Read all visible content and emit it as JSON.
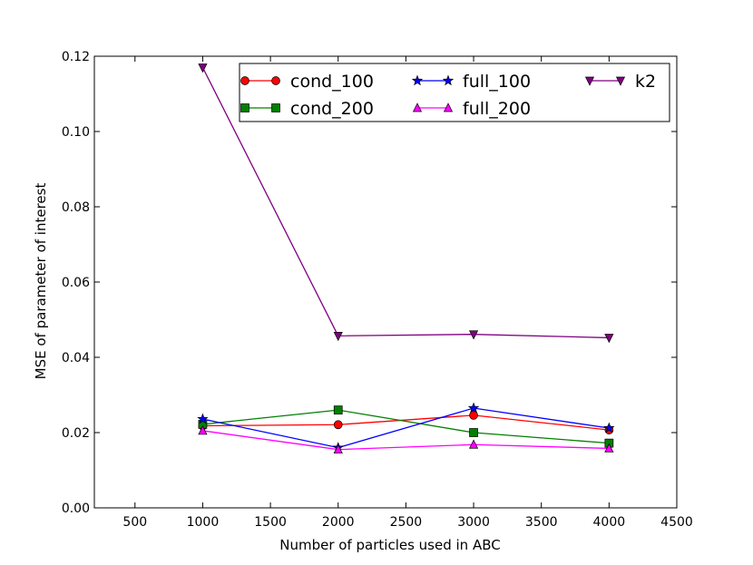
{
  "chart_data": {
    "type": "line",
    "title": "",
    "xlabel": "Number of particles used in ABC",
    "ylabel": "MSE of parameter of interest",
    "xlim": [
      200,
      4500
    ],
    "ylim": [
      0.0,
      0.12
    ],
    "xticks": [
      500,
      1000,
      1500,
      2000,
      2500,
      3000,
      3500,
      4000,
      4500
    ],
    "yticks": [
      0.0,
      0.02,
      0.04,
      0.06,
      0.08,
      0.1,
      0.12
    ],
    "xtick_labels": [
      "500",
      "1000",
      "1500",
      "2000",
      "2500",
      "3000",
      "3500",
      "4000",
      "4500"
    ],
    "ytick_labels": [
      "0.00",
      "0.02",
      "0.04",
      "0.06",
      "0.08",
      "0.10",
      "0.12"
    ],
    "grid": false,
    "legend_position": "top-right",
    "legend_columns": 3,
    "x": [
      1000,
      2000,
      3000,
      4000
    ],
    "series": [
      {
        "name": "cond_100",
        "color": "#ff0000",
        "marker": "circle",
        "values": [
          0.0218,
          0.0221,
          0.0246,
          0.0207
        ]
      },
      {
        "name": "cond_200",
        "color": "#008000",
        "marker": "square",
        "values": [
          0.0222,
          0.026,
          0.02,
          0.0172
        ]
      },
      {
        "name": "full_100",
        "color": "#0000ff",
        "marker": "star",
        "values": [
          0.0236,
          0.016,
          0.0265,
          0.0212
        ]
      },
      {
        "name": "full_200",
        "color": "#ff00ff",
        "marker": "triangle-up",
        "values": [
          0.0205,
          0.0155,
          0.0168,
          0.0158
        ]
      },
      {
        "name": "k2",
        "color": "#800080",
        "marker": "triangle-down",
        "values": [
          0.117,
          0.0457,
          0.0461,
          0.0452
        ]
      }
    ]
  }
}
